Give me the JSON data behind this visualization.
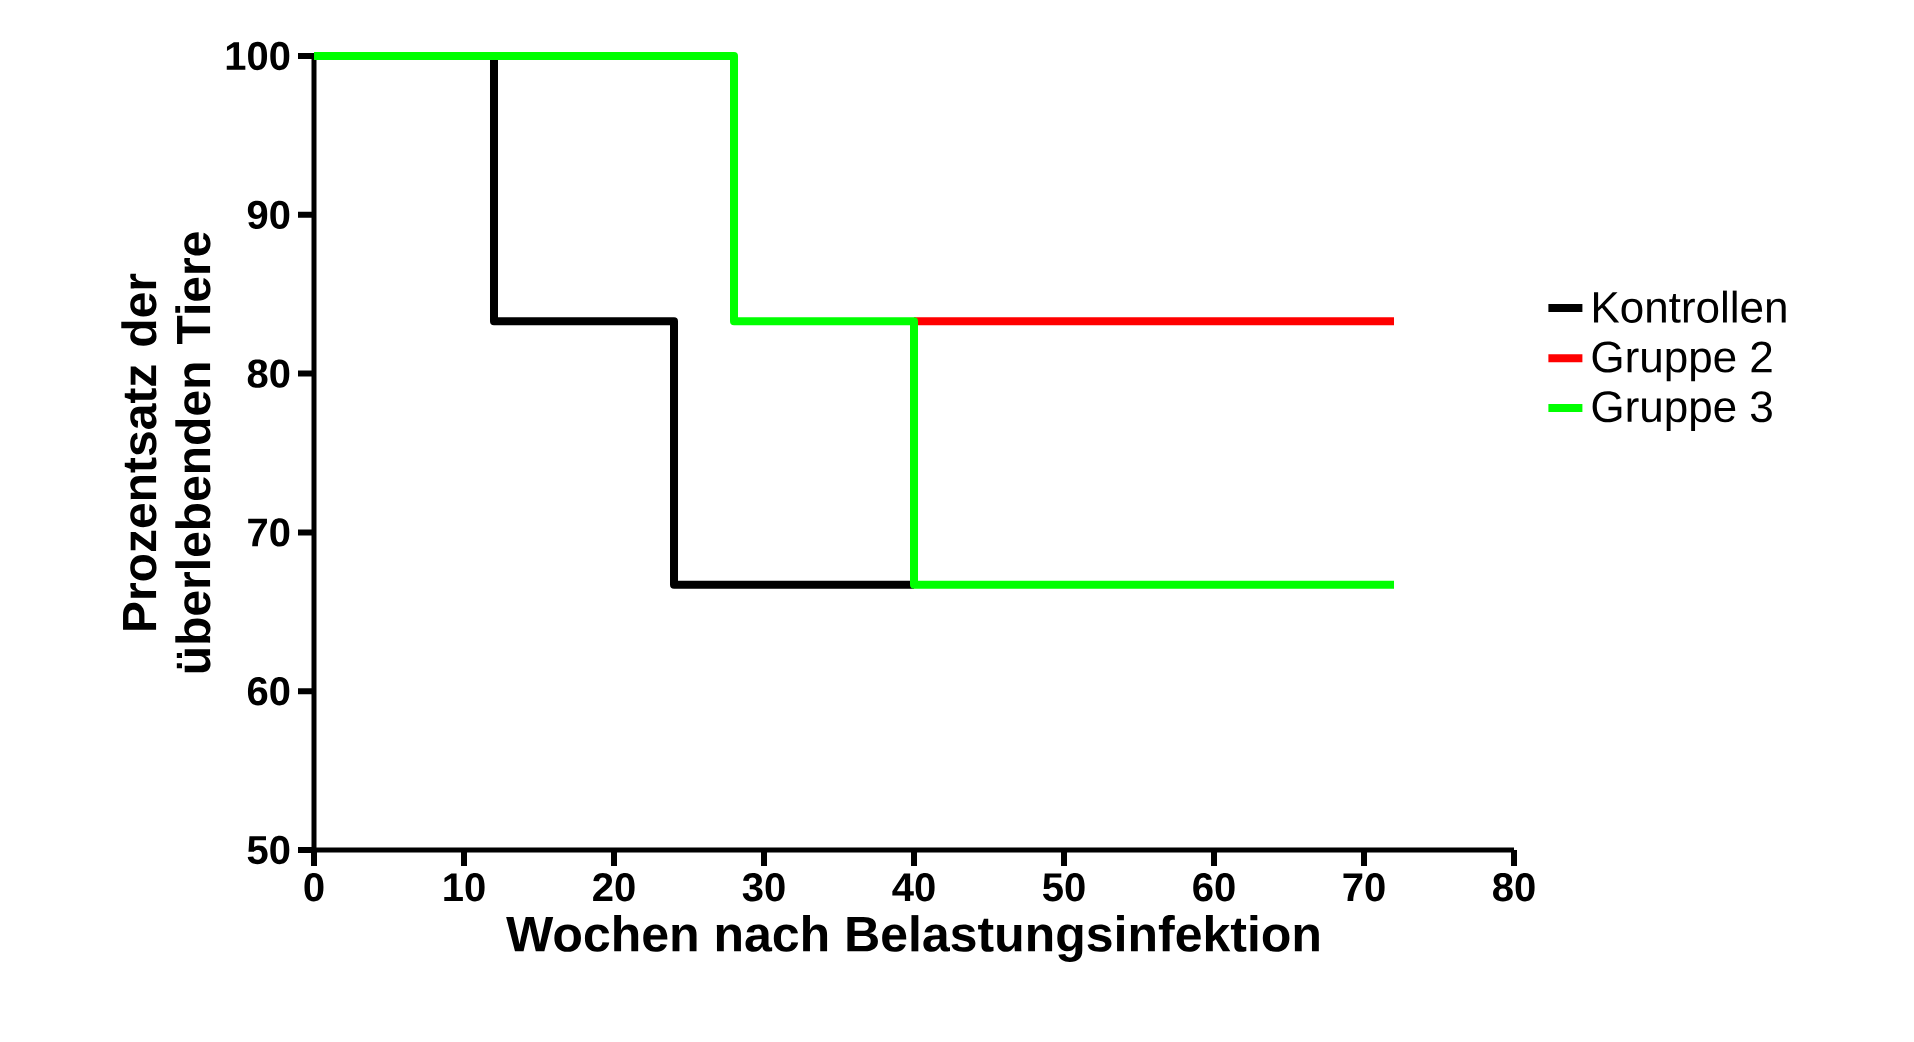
{
  "chart_data": {
    "type": "step",
    "xlabel": "Wochen nach Belastungsinfektion",
    "ylabel": "Prozentsatz der überlebenden Tiere",
    "xlim": [
      0,
      80
    ],
    "ylim": [
      50,
      100
    ],
    "xticks": [
      0,
      10,
      20,
      30,
      40,
      50,
      60,
      70,
      80
    ],
    "yticks": [
      50,
      60,
      70,
      80,
      90,
      100
    ],
    "grid": false,
    "legend": "right",
    "series": [
      {
        "name": "Kontrollen",
        "color": "#000000",
        "x": [
          0,
          12,
          24,
          40
        ],
        "values": [
          100,
          83.3,
          66.7,
          66.7
        ]
      },
      {
        "name": "Gruppe 2",
        "color": "#ff0000",
        "x": [
          40,
          72
        ],
        "values": [
          83.3,
          83.3
        ]
      },
      {
        "name": "Gruppe 3",
        "color": "#00ff00",
        "x": [
          0,
          28,
          40,
          72
        ],
        "values": [
          100,
          83.3,
          66.7,
          66.7
        ]
      }
    ]
  }
}
